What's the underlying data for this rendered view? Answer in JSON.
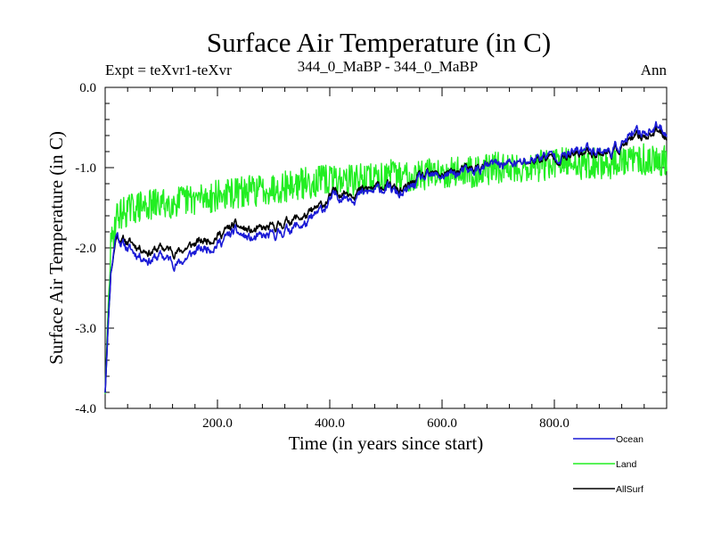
{
  "chart_data": {
    "type": "line",
    "title": "Surface Air Temperature (in C)",
    "subtitle_left": "Expt = teXvr1-teXvr",
    "subtitle_center": "344_0_MaBP - 344_0_MaBP",
    "subtitle_right": "Ann",
    "xlabel": "Time (in years since start)",
    "ylabel": "Surface Air Temperature (in C)",
    "xlim": [
      0,
      1000
    ],
    "ylim": [
      -4.0,
      0.0
    ],
    "x_ticks": [
      200,
      400,
      600,
      800
    ],
    "x_tick_labels": [
      "200.0",
      "400.0",
      "600.0",
      "800.0"
    ],
    "y_ticks": [
      -4.0,
      -3.0,
      -2.0,
      -1.0,
      0.0
    ],
    "y_tick_labels": [
      "-4.0",
      "-3.0",
      "-2.0",
      "-1.0",
      "0.0"
    ],
    "legend_position": "bottom-right",
    "series": [
      {
        "name": "Ocean",
        "color": "#1a1ad6",
        "noise": 0.09,
        "points": [
          [
            0,
            -3.8
          ],
          [
            5,
            -3.0
          ],
          [
            10,
            -2.3
          ],
          [
            20,
            -1.8
          ],
          [
            30,
            -1.95
          ],
          [
            50,
            -2.05
          ],
          [
            80,
            -2.15
          ],
          [
            100,
            -2.1
          ],
          [
            130,
            -2.2
          ],
          [
            160,
            -2.05
          ],
          [
            200,
            -1.95
          ],
          [
            230,
            -1.8
          ],
          [
            260,
            -1.9
          ],
          [
            300,
            -1.85
          ],
          [
            330,
            -1.75
          ],
          [
            360,
            -1.7
          ],
          [
            390,
            -1.5
          ],
          [
            410,
            -1.35
          ],
          [
            450,
            -1.35
          ],
          [
            500,
            -1.25
          ],
          [
            530,
            -1.35
          ],
          [
            560,
            -1.15
          ],
          [
            600,
            -1.1
          ],
          [
            650,
            -1.05
          ],
          [
            700,
            -0.95
          ],
          [
            740,
            -0.95
          ],
          [
            780,
            -0.85
          ],
          [
            820,
            -0.85
          ],
          [
            860,
            -0.75
          ],
          [
            900,
            -0.8
          ],
          [
            940,
            -0.6
          ],
          [
            960,
            -0.55
          ],
          [
            985,
            -0.5
          ],
          [
            1000,
            -0.55
          ]
        ]
      },
      {
        "name": "Land",
        "color": "#22ee22",
        "noise": 0.2,
        "points": [
          [
            0,
            -3.8
          ],
          [
            5,
            -2.8
          ],
          [
            10,
            -2.0
          ],
          [
            20,
            -1.6
          ],
          [
            50,
            -1.5
          ],
          [
            100,
            -1.45
          ],
          [
            150,
            -1.4
          ],
          [
            200,
            -1.35
          ],
          [
            250,
            -1.3
          ],
          [
            300,
            -1.25
          ],
          [
            350,
            -1.2
          ],
          [
            400,
            -1.15
          ],
          [
            450,
            -1.15
          ],
          [
            500,
            -1.1
          ],
          [
            550,
            -1.1
          ],
          [
            600,
            -1.05
          ],
          [
            650,
            -1.05
          ],
          [
            700,
            -1.0
          ],
          [
            750,
            -1.0
          ],
          [
            800,
            -0.95
          ],
          [
            850,
            -0.95
          ],
          [
            900,
            -0.95
          ],
          [
            950,
            -0.9
          ],
          [
            1000,
            -0.9
          ]
        ]
      },
      {
        "name": "AllSurf",
        "color": "#000000",
        "noise": 0.08,
        "points": [
          [
            0,
            -3.8
          ],
          [
            5,
            -3.0
          ],
          [
            10,
            -2.3
          ],
          [
            20,
            -1.85
          ],
          [
            30,
            -1.9
          ],
          [
            50,
            -1.95
          ],
          [
            80,
            -2.05
          ],
          [
            100,
            -2.0
          ],
          [
            130,
            -2.05
          ],
          [
            160,
            -1.95
          ],
          [
            200,
            -1.85
          ],
          [
            230,
            -1.72
          ],
          [
            260,
            -1.8
          ],
          [
            300,
            -1.75
          ],
          [
            330,
            -1.65
          ],
          [
            360,
            -1.6
          ],
          [
            390,
            -1.45
          ],
          [
            410,
            -1.3
          ],
          [
            450,
            -1.3
          ],
          [
            500,
            -1.22
          ],
          [
            530,
            -1.3
          ],
          [
            560,
            -1.12
          ],
          [
            600,
            -1.08
          ],
          [
            650,
            -1.02
          ],
          [
            700,
            -0.95
          ],
          [
            740,
            -0.95
          ],
          [
            780,
            -0.88
          ],
          [
            820,
            -0.88
          ],
          [
            860,
            -0.8
          ],
          [
            900,
            -0.82
          ],
          [
            940,
            -0.65
          ],
          [
            960,
            -0.6
          ],
          [
            985,
            -0.55
          ],
          [
            1000,
            -0.6
          ]
        ]
      }
    ]
  }
}
